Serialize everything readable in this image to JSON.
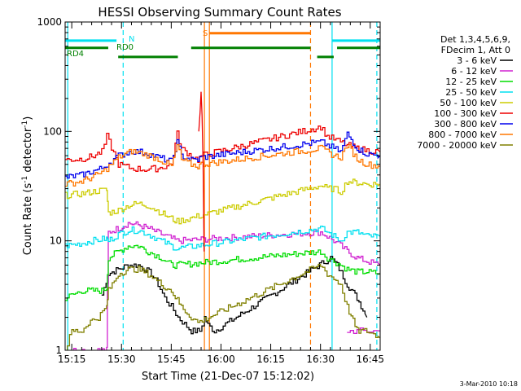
{
  "chart_data": {
    "type": "line",
    "title": "HESSI Observing Summary Count Rates",
    "xlabel": "Start Time (21-Dec-07 15:12:02)",
    "ylabel_main": "Count Rate (s",
    "ylabel_sup1": "-1",
    "ylabel_mid": " detector",
    "ylabel_sup2": "-1",
    "ylabel_end": ")",
    "yscale": "log",
    "ylim": [
      1,
      1000
    ],
    "xlim_minutes": [
      -2,
      93
    ],
    "x_tick_minutes": [
      0,
      15,
      30,
      45,
      60,
      75,
      90
    ],
    "x_tick_labels": [
      "15:15",
      "15:30",
      "15:45",
      "16:00",
      "16:15",
      "16:30",
      "16:45"
    ],
    "y_tick_values": [
      1,
      10,
      100,
      1000
    ],
    "y_tick_labels": [
      "1",
      "10",
      "100",
      "1000"
    ],
    "timestamp": "3-Mar-2010 10:18",
    "legend": {
      "header": [
        "Det 1,3,4,5,6,9,",
        "FDecim 1, Att 0"
      ],
      "entries": [
        {
          "label": "3 - 6 keV",
          "color": "#000000"
        },
        {
          "label": "6 - 12 keV",
          "color": "#d020d0"
        },
        {
          "label": "12 - 25 keV",
          "color": "#00dd00"
        },
        {
          "label": "25 - 50 keV",
          "color": "#00e0f0"
        },
        {
          "label": "50 - 100 keV",
          "color": "#cccc00"
        },
        {
          "label": "100 - 300 keV",
          "color": "#ee0000"
        },
        {
          "label": "300 - 800 keV",
          "color": "#0000ee"
        },
        {
          "label": "800 - 7000 keV",
          "color": "#ff7700"
        },
        {
          "label": "7000 - 20000 keV",
          "color": "#808000"
        }
      ]
    },
    "flag_labels": {
      "N": "N",
      "RD0": "RD0",
      "RD4": "RD4",
      "S": "S"
    },
    "series": [
      {
        "name": "3 - 6 keV",
        "color": "#000000",
        "x": [
          9,
          11,
          14,
          17,
          20,
          22,
          24,
          26,
          28,
          30,
          32,
          36,
          38.5,
          40,
          41,
          43,
          78,
          80,
          83,
          86,
          89
        ],
        "y": [
          3.2,
          5,
          5.5,
          6,
          6,
          5.5,
          5,
          4,
          3,
          2.5,
          2,
          1.5,
          1.5,
          2,
          1.7,
          1.5,
          7,
          6,
          4,
          3,
          2
        ]
      },
      {
        "name": "6 - 12 keV",
        "color": "#d020d0",
        "x": [
          -2,
          10.5,
          11,
          14,
          17,
          20,
          23,
          27,
          30,
          31.7,
          75,
          77,
          79,
          81,
          83,
          86,
          89,
          93
        ],
        "y": [
          1,
          1,
          12,
          13,
          14.5,
          14,
          13,
          11.5,
          10.5,
          10,
          12,
          11,
          10,
          9,
          8,
          7,
          6.5,
          6
        ],
        "extra": [
          {
            "x": [
              83,
              93
            ],
            "y": [
              1.5,
              1.5
            ]
          }
        ]
      },
      {
        "name": "12 - 25 keV",
        "color": "#00dd00",
        "x": [
          -2,
          3,
          6,
          9,
          10.5,
          11,
          14,
          17,
          20,
          23,
          27,
          30,
          31.7,
          75,
          77,
          79,
          81,
          83,
          86,
          89,
          93
        ],
        "y": [
          3,
          3.5,
          3.5,
          3.5,
          3.7,
          7,
          8,
          9,
          9,
          8,
          7,
          6,
          6,
          8,
          7,
          6.5,
          6,
          5.5,
          5.2,
          5.2,
          5
        ]
      },
      {
        "name": "25 - 50 keV",
        "color": "#00e0f0",
        "x": [
          -2,
          3,
          6,
          10.5,
          11,
          14,
          17,
          20,
          23,
          27,
          30,
          31.7,
          75,
          77,
          79,
          81,
          83,
          86,
          89,
          93
        ],
        "y": [
          9,
          9.5,
          10,
          10.5,
          10,
          11.5,
          12.5,
          12.5,
          11.5,
          10,
          9,
          8.5,
          13,
          12,
          11,
          10,
          12,
          12,
          11,
          11
        ]
      },
      {
        "name": "50 - 100 keV",
        "color": "#cccc00",
        "x": [
          -2,
          3,
          6,
          9,
          10.5,
          11,
          14,
          17,
          20,
          23,
          27,
          30,
          31.7,
          75,
          77,
          79,
          81,
          83,
          86,
          89,
          93
        ],
        "y": [
          26,
          27,
          28,
          29,
          29,
          18,
          19,
          21,
          22,
          21,
          18,
          16,
          15,
          32,
          30,
          30,
          28,
          35,
          34,
          33,
          33
        ]
      },
      {
        "name": "100 - 300 keV",
        "color": "#ee0000",
        "x": [
          -2,
          3,
          6,
          9,
          10.5,
          14,
          18,
          22,
          26,
          30,
          31.7,
          33,
          36,
          38,
          39,
          75,
          77,
          79,
          81,
          83,
          86,
          89,
          93
        ],
        "y": [
          55,
          56,
          59,
          65,
          90,
          50,
          46,
          45,
          46,
          50,
          95,
          70,
          60,
          55,
          60,
          110,
          90,
          85,
          80,
          75,
          70,
          67,
          65
        ]
      },
      {
        "name": "300 - 800 keV",
        "color": "#0000ee",
        "x": [
          -2,
          3,
          6,
          9,
          10.5,
          14,
          18,
          22,
          26,
          30,
          31.7,
          33,
          36,
          38,
          39,
          75,
          77,
          79,
          81,
          83,
          86,
          89,
          93
        ],
        "y": [
          38,
          40,
          43,
          46,
          50,
          60,
          66,
          64,
          58,
          53,
          80,
          60,
          55,
          55,
          58,
          80,
          75,
          70,
          65,
          95,
          70,
          62,
          60
        ]
      },
      {
        "name": "800 - 7000 keV",
        "color": "#ff7700",
        "x": [
          -2,
          3,
          6,
          9,
          10.5,
          14,
          18,
          22,
          26,
          30,
          31.7,
          33,
          36,
          38,
          39,
          75,
          77,
          79,
          81,
          83,
          86,
          89,
          93
        ],
        "y": [
          33,
          35,
          38,
          42,
          46,
          58,
          66,
          62,
          56,
          48,
          75,
          55,
          50,
          48,
          50,
          70,
          65,
          60,
          58,
          75,
          56,
          50,
          48
        ]
      },
      {
        "name": "7000 - 20000 keV",
        "color": "#808000",
        "x": [
          -2,
          0,
          3,
          5,
          8,
          10.5,
          11,
          14,
          17,
          20,
          23,
          25,
          27,
          30,
          33,
          36,
          38,
          75,
          77,
          79,
          81,
          83,
          86,
          89,
          93
        ],
        "y": [
          1,
          1.5,
          1.5,
          1.8,
          2,
          2.5,
          3.5,
          5,
          5.5,
          5.5,
          5,
          4.5,
          4,
          3.5,
          2.5,
          2,
          1.8,
          6,
          5,
          4.5,
          4,
          2.5,
          1.5,
          1.5,
          1.3
        ]
      },
      {
        "name": "spike",
        "color": "#ee0000",
        "x": [
          38.3,
          38.7,
          39,
          39.3,
          39.6,
          39.9
        ],
        "y": [
          100,
          150,
          230,
          140,
          50,
          8
        ]
      }
    ],
    "flags": [
      {
        "name": "night",
        "color": "#00e0f0",
        "segments": [
          [
            -2,
            13.5
          ],
          [
            78.5,
            93
          ]
        ],
        "level": 675
      },
      {
        "name": "saa",
        "color": "#ff7700",
        "segments": [
          [
            41.5,
            72
          ]
        ],
        "level": 790
      },
      {
        "name": "decimation",
        "color": "#008000",
        "segments": [
          [
            -2,
            11
          ],
          [
            14,
            32
          ],
          [
            36,
            72
          ],
          [
            74,
            79
          ],
          [
            80,
            93
          ]
        ],
        "levels": [
          580,
          480,
          580,
          480,
          580
        ]
      }
    ],
    "markers": [
      {
        "x": -1.2,
        "color": "#00e0f0",
        "style": "solid"
      },
      {
        "x": 15.5,
        "color": "#00e0f0",
        "style": "dash"
      },
      {
        "x": 40,
        "color": "#ff7700",
        "style": "solid"
      },
      {
        "x": 41.5,
        "color": "#ff7700",
        "style": "solid"
      },
      {
        "x": 72,
        "color": "#ff7700",
        "style": "dash"
      },
      {
        "x": 78.5,
        "color": "#00e0f0",
        "style": "solid"
      },
      {
        "x": 92,
        "color": "#00e0f0",
        "style": "dash"
      }
    ]
  }
}
